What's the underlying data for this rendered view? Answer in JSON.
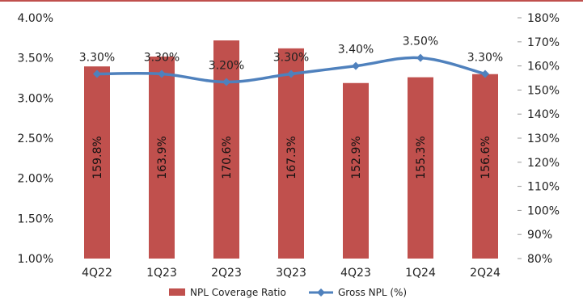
{
  "chart_data": {
    "type": "bar+line",
    "categories": [
      "4Q22",
      "1Q23",
      "2Q23",
      "3Q23",
      "4Q23",
      "1Q24",
      "2Q24"
    ],
    "series": [
      {
        "name": "NPL Coverage Ratio",
        "type": "bar",
        "axis": "right",
        "values": [
          159.8,
          163.9,
          170.6,
          167.3,
          152.9,
          155.3,
          156.6
        ],
        "labels": [
          "159.8%",
          "163.9%",
          "170.6%",
          "167.3%",
          "152.9%",
          "155.3%",
          "156.6%"
        ],
        "color": "#c0504d"
      },
      {
        "name": "Gross NPL (%)",
        "type": "line",
        "axis": "left",
        "values": [
          3.3,
          3.3,
          3.2,
          3.3,
          3.4,
          3.5,
          3.3
        ],
        "labels": [
          "3.30%",
          "3.30%",
          "3.20%",
          "3.30%",
          "3.40%",
          "3.50%",
          "3.30%"
        ],
        "color": "#4f81bd"
      }
    ],
    "y_left": {
      "min": 1.0,
      "max": 4.0,
      "step": 0.5,
      "tick_labels": [
        "1.00%",
        "1.50%",
        "2.00%",
        "2.50%",
        "3.00%",
        "3.50%",
        "4.00%"
      ]
    },
    "y_right": {
      "min": 80,
      "max": 180,
      "step": 10,
      "tick_labels": [
        "80%",
        "90%",
        "100%",
        "110%",
        "120%",
        "130%",
        "140%",
        "150%",
        "160%",
        "170%",
        "180%"
      ]
    },
    "grid": false,
    "legend": "bottom"
  }
}
